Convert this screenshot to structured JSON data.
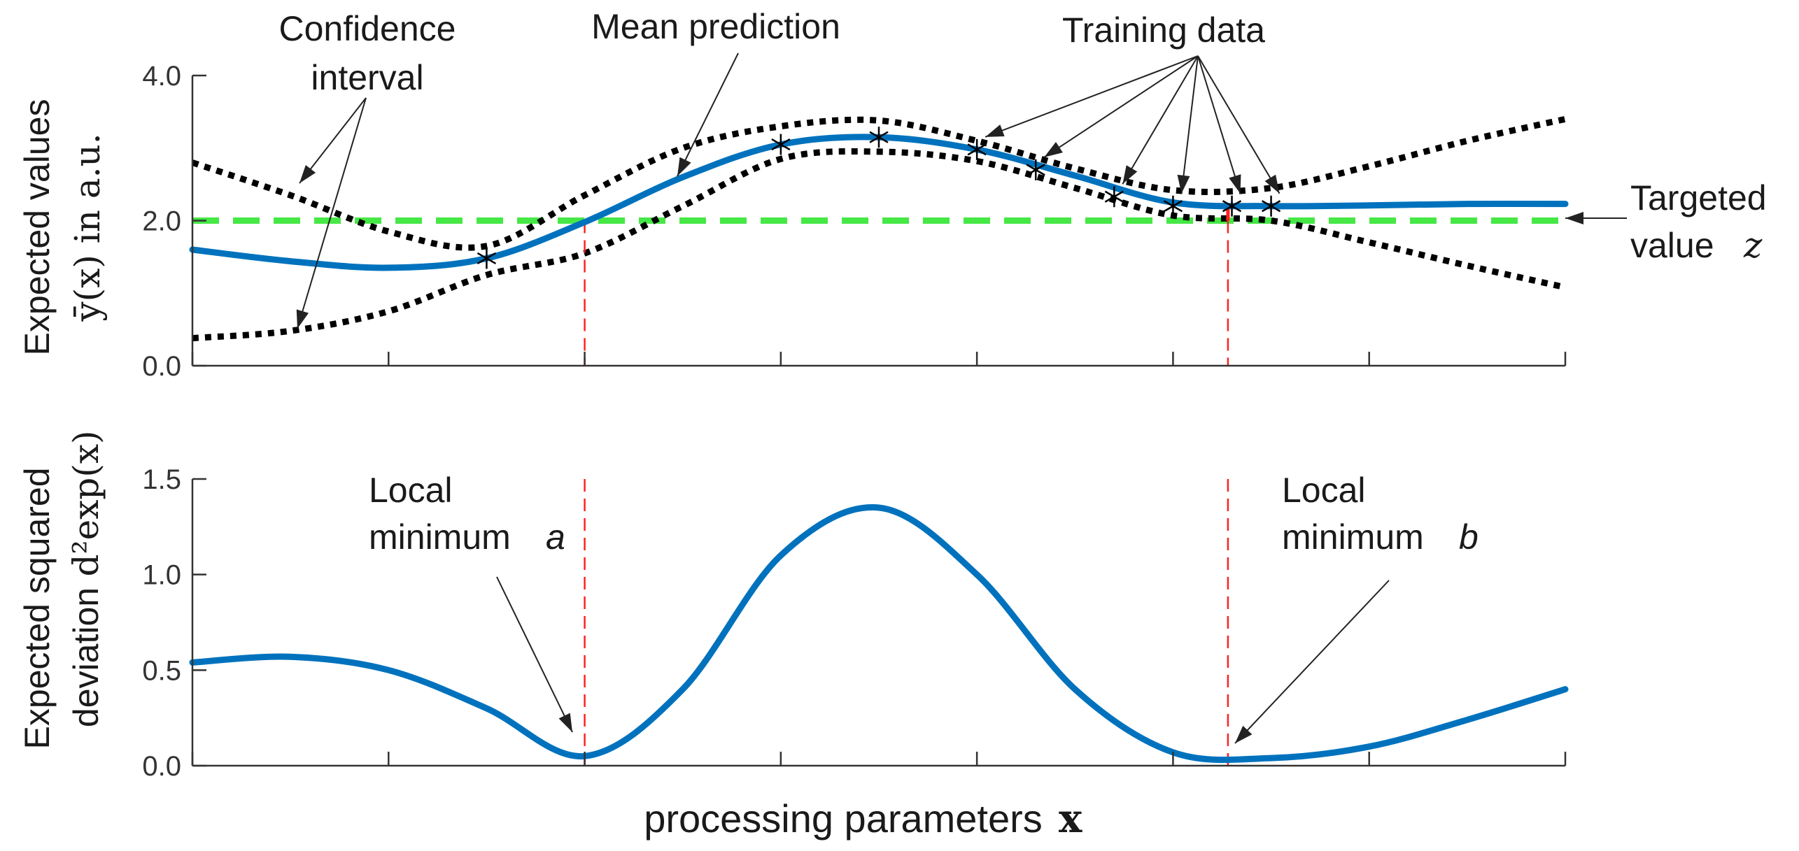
{
  "colors": {
    "mean": "#0072bd",
    "confidence": "#000000",
    "target": "#45e845",
    "minimum_marker": "#ff2020",
    "axis": "#333333"
  },
  "chart_data": [
    {
      "type": "line",
      "panel": "top",
      "ylabel": "Expected values",
      "ylabel_math": "ȳ(x) in a.u.",
      "ylim": [
        0,
        4
      ],
      "yticks": [
        0,
        2,
        4
      ],
      "ytick_labels": [
        "0.0",
        "2.0",
        "4.0"
      ],
      "xlim": [
        0,
        7
      ],
      "xticks": [
        0,
        1,
        2,
        3,
        4,
        5,
        6,
        7
      ],
      "series": [
        {
          "name": "Mean prediction",
          "style": "solid",
          "x": [
            0,
            0.5,
            1,
            1.5,
            2,
            2.5,
            3,
            3.5,
            4,
            4.5,
            5,
            5.5,
            6,
            6.5,
            7
          ],
          "y": [
            1.6,
            1.44,
            1.35,
            1.48,
            1.98,
            2.6,
            3.05,
            3.15,
            2.98,
            2.62,
            2.25,
            2.2,
            2.21,
            2.23,
            2.23
          ]
        },
        {
          "name": "Confidence interval (upper)",
          "style": "dotted",
          "x": [
            0,
            0.5,
            1,
            1.5,
            2,
            2.5,
            3,
            3.5,
            4,
            4.5,
            5,
            5.5,
            6,
            6.5,
            7
          ],
          "y": [
            2.8,
            2.35,
            1.85,
            1.65,
            2.35,
            3.0,
            3.3,
            3.38,
            3.1,
            2.72,
            2.42,
            2.45,
            2.75,
            3.1,
            3.4
          ]
        },
        {
          "name": "Confidence interval (lower)",
          "style": "dotted",
          "x": [
            0,
            0.5,
            1,
            1.5,
            2,
            2.5,
            3,
            3.5,
            4,
            4.5,
            5,
            5.5,
            6,
            6.5,
            7
          ],
          "y": [
            0.38,
            0.48,
            0.75,
            1.25,
            1.55,
            2.2,
            2.85,
            2.95,
            2.82,
            2.45,
            2.07,
            2.0,
            1.7,
            1.38,
            1.08
          ]
        },
        {
          "name": "Targeted value z",
          "style": "dashed",
          "x": [
            0,
            7
          ],
          "y": [
            2.0,
            2.0
          ]
        }
      ],
      "training_data": {
        "name": "Training data",
        "x": [
          1.5,
          3.0,
          3.5,
          4.0,
          4.3,
          4.7,
          5.0,
          5.3,
          5.5
        ],
        "y": [
          1.48,
          3.05,
          3.15,
          2.98,
          2.7,
          2.33,
          2.2,
          2.2,
          2.2
        ]
      },
      "minima_x": [
        2.0,
        5.28
      ],
      "annotations": {
        "confidence_line1": "Confidence",
        "confidence_line2": "interval",
        "mean": "Mean prediction",
        "training": "Training data",
        "target_line1": "Targeted",
        "target_line2": "value",
        "target_symbol": "z"
      }
    },
    {
      "type": "line",
      "panel": "bottom",
      "ylabel": "Expected squared",
      "ylabel2": "deviation",
      "ylabel_math": "d²exp(x)",
      "ylim": [
        0,
        1.5
      ],
      "yticks": [
        0,
        0.5,
        1.0,
        1.5
      ],
      "ytick_labels": [
        "0.0",
        "0.5",
        "1.0",
        "1.5"
      ],
      "xlim": [
        0,
        7
      ],
      "xticks": [
        0,
        1,
        2,
        3,
        4,
        5,
        6,
        7
      ],
      "xlabel": "processing parameters",
      "xlabel_symbol": "x",
      "series": [
        {
          "name": "Expected squared deviation",
          "style": "solid",
          "x": [
            0,
            0.5,
            1,
            1.5,
            2,
            2.5,
            3,
            3.5,
            4,
            4.5,
            5,
            5.5,
            6,
            6.5,
            7
          ],
          "y": [
            0.54,
            0.57,
            0.5,
            0.3,
            0.05,
            0.4,
            1.1,
            1.35,
            1.0,
            0.4,
            0.07,
            0.04,
            0.1,
            0.24,
            0.4
          ]
        }
      ],
      "minima_x": [
        2.0,
        5.28
      ],
      "annotations": {
        "min_a_line1": "Local",
        "min_a_line2": "minimum",
        "min_a_letter": "a",
        "min_b_line1": "Local",
        "min_b_line2": "minimum",
        "min_b_letter": "b"
      }
    }
  ]
}
